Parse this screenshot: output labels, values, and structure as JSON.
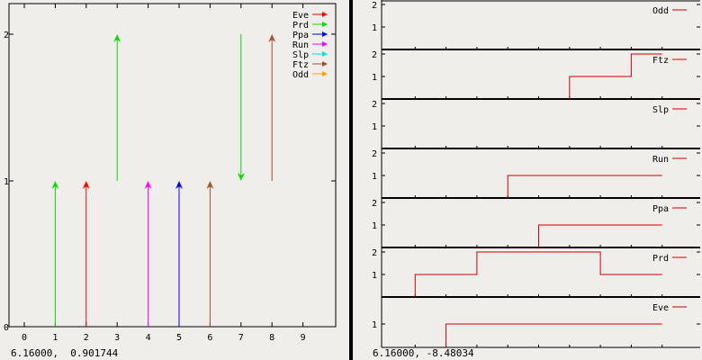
{
  "colors": {
    "background": "#f0eeea",
    "divider": "#000000",
    "axis": "#000000"
  },
  "left_status": "6.16000,  0.901744",
  "right_status": "6.16000, -8.48034",
  "chart_data": [
    {
      "type": "vector",
      "title": "",
      "xlabel": "",
      "ylabel": "",
      "xlim": [
        0,
        10
      ],
      "ylim": [
        0,
        2
      ],
      "x_ticks": [
        0,
        1,
        2,
        3,
        4,
        5,
        6,
        7,
        8,
        9
      ],
      "y_ticks": [
        0,
        1,
        2
      ],
      "grid": false,
      "legend_position": "top-right",
      "series": [
        {
          "name": "Eve",
          "color": "#ff0000",
          "arrows": [
            {
              "x": 2,
              "y0": 0,
              "y1": 1
            }
          ]
        },
        {
          "name": "Prd",
          "color": "#00e000",
          "arrows": [
            {
              "x": 1,
              "y0": 0,
              "y1": 1
            },
            {
              "x": 3,
              "y0": 1,
              "y1": 2
            },
            {
              "x": 7,
              "y0": 2,
              "y1": 1
            }
          ]
        },
        {
          "name": "Ppa",
          "color": "#0000ff",
          "arrows": [
            {
              "x": 5,
              "y0": 0,
              "y1": 1
            }
          ]
        },
        {
          "name": "Run",
          "color": "#ff00ff",
          "arrows": [
            {
              "x": 4,
              "y0": 0,
              "y1": 1
            }
          ]
        },
        {
          "name": "Slp",
          "color": "#00e0e0",
          "arrows": []
        },
        {
          "name": "Ftz",
          "color": "#a0522d",
          "arrows": [
            {
              "x": 6,
              "y0": 0,
              "y1": 1
            },
            {
              "x": 8,
              "y0": 1,
              "y1": 2
            }
          ]
        },
        {
          "name": "Odd",
          "color": "#ffa500",
          "arrows": []
        }
      ]
    },
    {
      "type": "line",
      "layout": "stacked-step",
      "title": "",
      "xlim": [
        0,
        9
      ],
      "ylim": [
        0,
        2
      ],
      "y_ticks": [
        1,
        2
      ],
      "x_ticks": [
        1,
        2,
        3,
        4,
        5,
        6,
        7,
        8,
        9
      ],
      "line_color": "#d00000",
      "panels": [
        {
          "name": "Odd",
          "y_ticks": [
            1,
            2
          ],
          "points": []
        },
        {
          "name": "Ftz",
          "y_ticks": [
            1,
            2
          ],
          "points": [
            [
              6,
              0
            ],
            [
              6,
              1
            ],
            [
              8,
              1
            ],
            [
              8,
              2
            ],
            [
              9,
              2
            ]
          ]
        },
        {
          "name": "Slp",
          "y_ticks": [
            1,
            2
          ],
          "points": []
        },
        {
          "name": "Run",
          "y_ticks": [
            1,
            2
          ],
          "points": [
            [
              4,
              0
            ],
            [
              4,
              1
            ],
            [
              9,
              1
            ]
          ]
        },
        {
          "name": "Ppa",
          "y_ticks": [
            1,
            2
          ],
          "points": [
            [
              5,
              0
            ],
            [
              5,
              1
            ],
            [
              9,
              1
            ]
          ]
        },
        {
          "name": "Prd",
          "y_ticks": [
            1,
            2
          ],
          "points": [
            [
              1,
              0
            ],
            [
              1,
              1
            ],
            [
              3,
              1
            ],
            [
              3,
              2
            ],
            [
              7,
              2
            ],
            [
              7,
              1
            ],
            [
              9,
              1
            ]
          ]
        },
        {
          "name": "Eve",
          "y_ticks": [
            1
          ],
          "points": [
            [
              2,
              0
            ],
            [
              2,
              1
            ],
            [
              9,
              1
            ]
          ]
        }
      ]
    }
  ]
}
